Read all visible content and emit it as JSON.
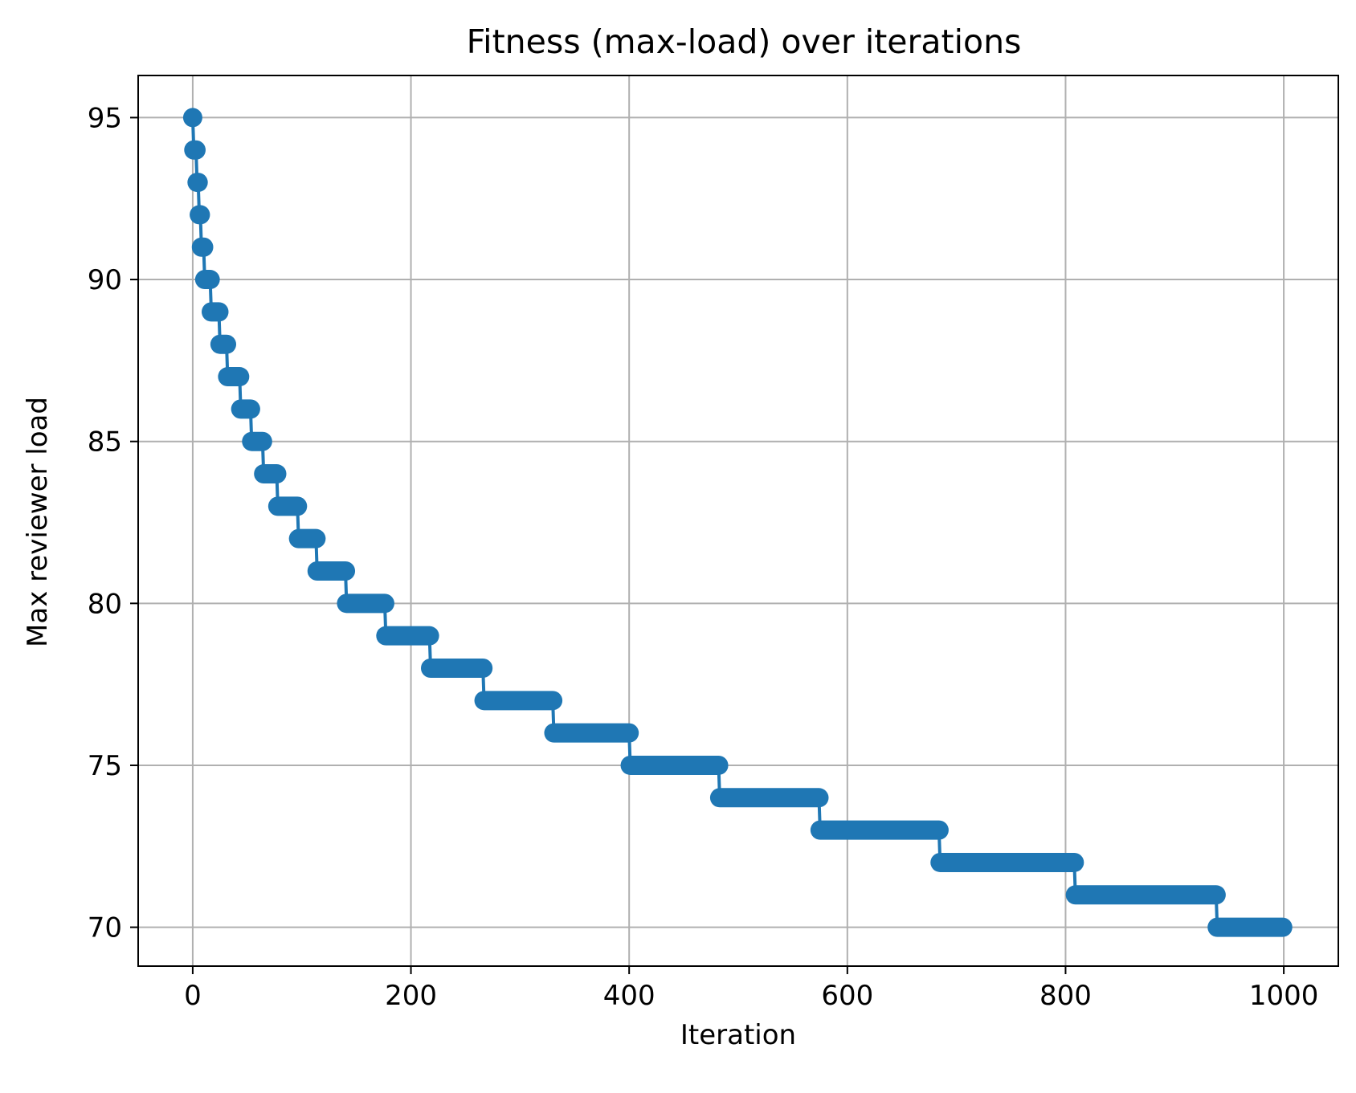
{
  "chart_data": {
    "type": "line",
    "title": "Fitness (max-load) over iterations",
    "xlabel": "Iteration",
    "ylabel": "Max reviewer load",
    "xlim": [
      -50,
      1050
    ],
    "ylim": [
      68.8,
      96.3
    ],
    "xticks": [
      0,
      200,
      400,
      600,
      800,
      1000
    ],
    "yticks": [
      70,
      75,
      80,
      85,
      90,
      95
    ],
    "xtick_labels": [
      "0",
      "200",
      "400",
      "600",
      "800",
      "1000"
    ],
    "ytick_labels": [
      "70",
      "75",
      "80",
      "85",
      "90",
      "95"
    ],
    "grid": true,
    "marker": "circle",
    "color": "#1f77b4",
    "steps": [
      {
        "value": 95,
        "start": 0,
        "end": 0
      },
      {
        "value": 94,
        "start": 1,
        "end": 3
      },
      {
        "value": 93,
        "start": 4,
        "end": 5
      },
      {
        "value": 92,
        "start": 6,
        "end": 7
      },
      {
        "value": 91,
        "start": 8,
        "end": 10
      },
      {
        "value": 90,
        "start": 11,
        "end": 16
      },
      {
        "value": 89,
        "start": 17,
        "end": 24
      },
      {
        "value": 88,
        "start": 25,
        "end": 31
      },
      {
        "value": 87,
        "start": 32,
        "end": 43
      },
      {
        "value": 86,
        "start": 44,
        "end": 53
      },
      {
        "value": 85,
        "start": 54,
        "end": 64
      },
      {
        "value": 84,
        "start": 65,
        "end": 77
      },
      {
        "value": 83,
        "start": 78,
        "end": 96
      },
      {
        "value": 82,
        "start": 97,
        "end": 113
      },
      {
        "value": 81,
        "start": 114,
        "end": 140
      },
      {
        "value": 80,
        "start": 141,
        "end": 176
      },
      {
        "value": 79,
        "start": 177,
        "end": 217
      },
      {
        "value": 78,
        "start": 218,
        "end": 266
      },
      {
        "value": 77,
        "start": 267,
        "end": 330
      },
      {
        "value": 76,
        "start": 331,
        "end": 400
      },
      {
        "value": 75,
        "start": 401,
        "end": 482
      },
      {
        "value": 74,
        "start": 483,
        "end": 574
      },
      {
        "value": 73,
        "start": 575,
        "end": 684
      },
      {
        "value": 72,
        "start": 685,
        "end": 808
      },
      {
        "value": 71,
        "start": 809,
        "end": 938
      },
      {
        "value": 70,
        "start": 939,
        "end": 999
      }
    ]
  }
}
